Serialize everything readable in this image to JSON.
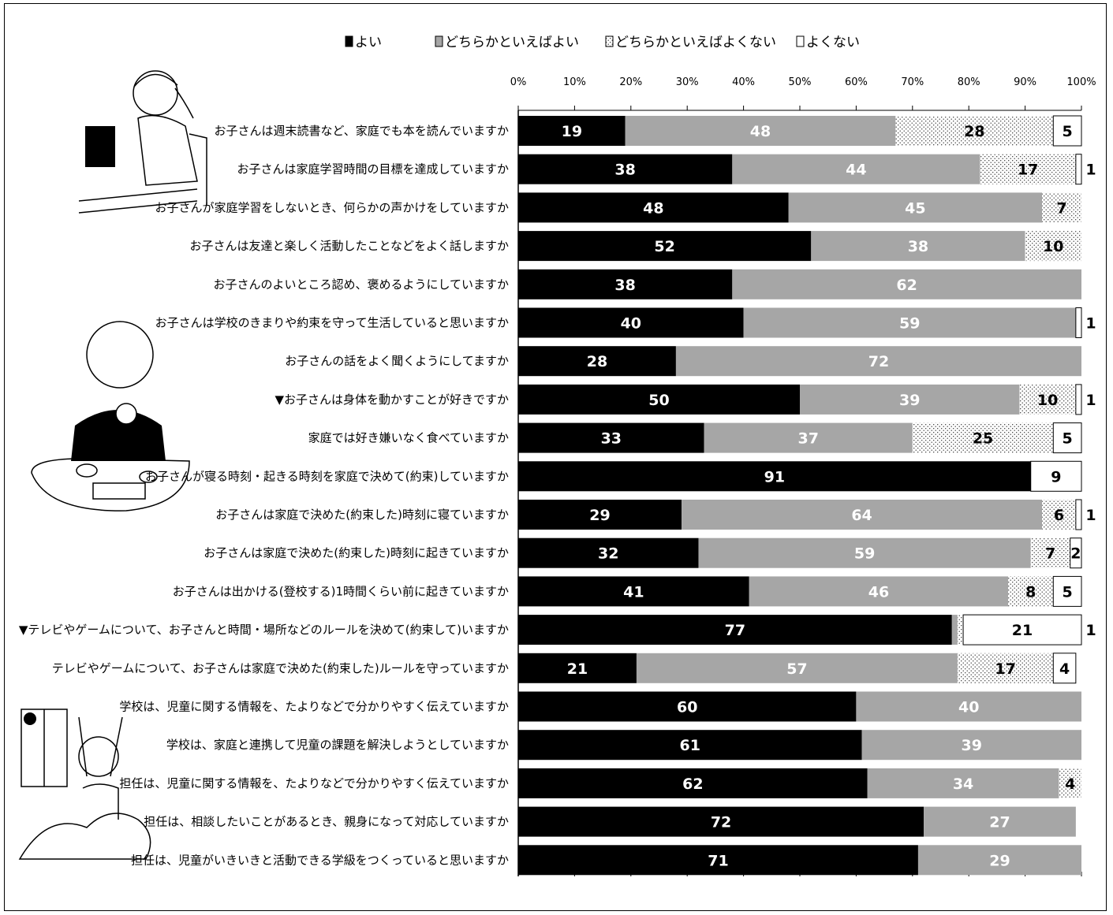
{
  "chart_data": {
    "type": "bar",
    "orientation": "horizontal",
    "stacked": true,
    "title": "",
    "xlabel": "",
    "ylabel": "",
    "xlim": [
      0,
      100
    ],
    "x_ticks": [
      "0%",
      "10%",
      "20%",
      "30%",
      "40%",
      "50%",
      "60%",
      "70%",
      "80%",
      "90%",
      "100%"
    ],
    "legend_position": "top",
    "grid": false,
    "series": [
      {
        "name": "よい",
        "color": "#000000",
        "pattern": "solid",
        "label_color": "#ffffff"
      },
      {
        "name": "どちらかといえばよい",
        "color": "#a6a6a6",
        "pattern": "solid",
        "label_color": "#ffffff"
      },
      {
        "name": "どちらかといえばよくない",
        "color": "#ffffff",
        "pattern": "dots",
        "label_color": "#000000"
      },
      {
        "name": "よくない",
        "color": "#ffffff",
        "pattern": "none",
        "label_color": "#000000"
      }
    ],
    "categories": [
      "お子さんは週末読書など、家庭でも本を読んでいますか",
      "お子さんは家庭学習時間の目標を達成していますか",
      "お子さんが家庭学習をしないとき、何らかの声かけをしていますか",
      "お子さんは友達と楽しく活動したことなどをよく話しますか",
      "お子さんのよいところ認め、褒めるようにしていますか",
      "お子さんは学校のきまりや約束を守って生活していると思いますか",
      "お子さんの話をよく聞くようにしてますか",
      "▼お子さんは身体を動かすことが好きですか",
      "家庭では好き嫌いなく食べていますか",
      "お子さんが寝る時刻・起きる時刻を家庭で決めて(約束)していますか",
      "お子さんは家庭で決めた(約束した)時刻に寝ていますか",
      "お子さんは家庭で決めた(約束した)時刻に起きていますか",
      "お子さんは出かける(登校する)1時間くらい前に起きていますか",
      "▼テレビやゲームについて、お子さんと時間・場所などのルールを決めて(約束して)いますか",
      "テレビやゲームについて、お子さんは家庭で決めた(約束した)ルールを守っていますか",
      "学校は、児童に関する情報を、たよりなどで分かりやすく伝えていますか",
      "学校は、家庭と連携して児童の課題を解決しようとしていますか",
      "担任は、児童に関する情報を、たよりなどで分かりやすく伝えていますか",
      "担任は、相談したいことがあるとき、親身になって対応していますか",
      "担任は、児童がいきいきと活動できる学級をつくっていると思いますか"
    ],
    "values": [
      [
        19,
        48,
        28,
        5
      ],
      [
        38,
        44,
        17,
        1
      ],
      [
        48,
        45,
        7,
        0
      ],
      [
        52,
        38,
        10,
        0
      ],
      [
        38,
        62,
        0,
        0
      ],
      [
        40,
        59,
        0,
        1
      ],
      [
        28,
        72,
        0,
        0
      ],
      [
        50,
        39,
        10,
        1
      ],
      [
        33,
        37,
        25,
        5
      ],
      [
        91,
        0,
        0,
        9
      ],
      [
        29,
        64,
        6,
        1
      ],
      [
        32,
        59,
        7,
        2
      ],
      [
        41,
        46,
        8,
        5
      ],
      [
        77,
        1,
        1,
        21
      ],
      [
        21,
        57,
        17,
        4
      ],
      [
        60,
        40,
        0,
        0
      ],
      [
        61,
        39,
        0,
        0
      ],
      [
        62,
        34,
        4,
        0
      ],
      [
        72,
        27,
        0,
        0
      ],
      [
        71,
        29,
        0,
        0
      ]
    ]
  }
}
